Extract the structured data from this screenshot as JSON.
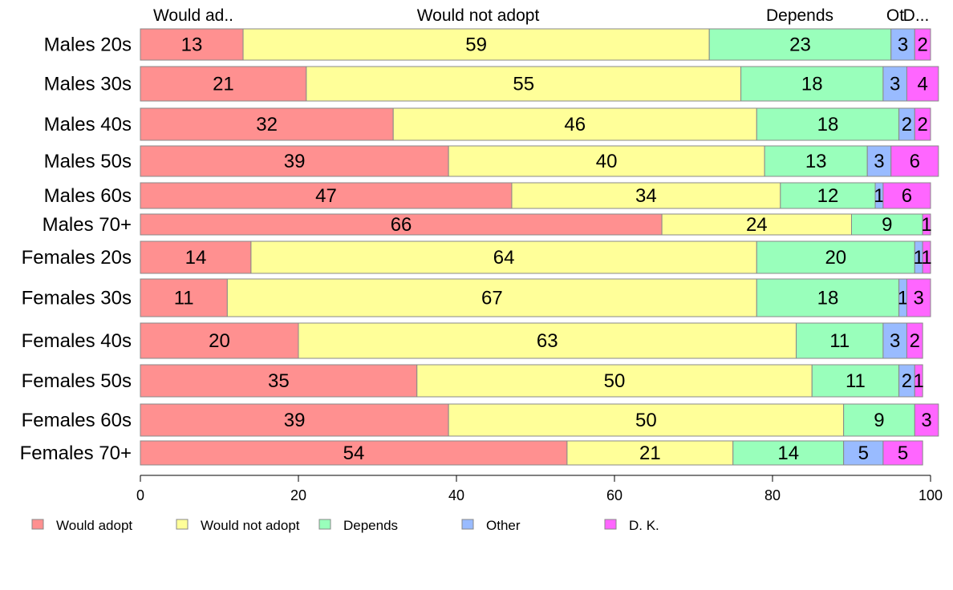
{
  "chart_data": {
    "type": "bar",
    "orientation": "horizontal",
    "stacked": true,
    "categories": [
      "Males 20s",
      "Males 30s",
      "Males 40s",
      "Males 50s",
      "Males 60s",
      "Males 70+",
      "Females 20s",
      "Females 30s",
      "Females 40s",
      "Females 50s",
      "Females 60s",
      "Females 70+"
    ],
    "series": [
      {
        "name": "Would adopt",
        "top_label": "Would ad..",
        "color": "#ff9090",
        "values": [
          13,
          21,
          32,
          39,
          47,
          66,
          14,
          11,
          20,
          35,
          39,
          54
        ]
      },
      {
        "name": "Would not adopt",
        "top_label": "Would not adopt",
        "color": "#ffff99",
        "values": [
          59,
          55,
          46,
          40,
          34,
          24,
          64,
          67,
          63,
          50,
          50,
          21
        ]
      },
      {
        "name": "Depends",
        "top_label": "Depends",
        "color": "#99ffbb",
        "values": [
          23,
          18,
          18,
          13,
          12,
          9,
          20,
          18,
          11,
          11,
          9,
          14
        ]
      },
      {
        "name": "Other",
        "top_label": "Ot",
        "color": "#99bbff",
        "values": [
          3,
          3,
          2,
          3,
          1,
          0,
          1,
          1,
          3,
          2,
          0,
          5
        ]
      },
      {
        "name": "D. K.",
        "top_label": "D...",
        "color": "#ff66ff",
        "values": [
          2,
          4,
          2,
          6,
          6,
          1,
          1,
          3,
          2,
          1,
          3,
          5
        ]
      }
    ],
    "xlim": [
      0,
      100
    ],
    "xticks": [
      "0",
      "20",
      "40",
      "60",
      "80",
      "100"
    ],
    "grid": false,
    "legend_position": "bottom"
  }
}
